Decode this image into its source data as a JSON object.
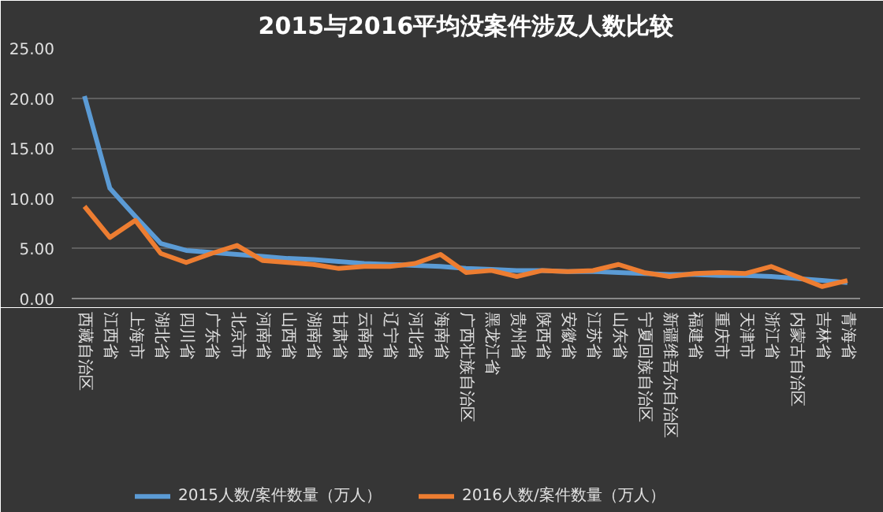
{
  "chart_data": {
    "type": "line",
    "title": "2015与2016平均没案件涉及人数比较",
    "categories": [
      "西藏自治区",
      "江西省",
      "上海市",
      "湖北省",
      "四川省",
      "广东省",
      "北京市",
      "河南省",
      "山西省",
      "湖南省",
      "甘肃省",
      "云南省",
      "辽宁省",
      "河北省",
      "海南省",
      "广西壮族自治区",
      "黑龙江省",
      "贵州省",
      "陕西省",
      "安徽省",
      "江苏省",
      "山东省",
      "宁夏回族自治区",
      "新疆维吾尔自治区",
      "福建省",
      "重庆市",
      "天津市",
      "浙江省",
      "内蒙古自治区",
      "吉林省",
      "青海省"
    ],
    "series": [
      {
        "name": "2015人数/案件数量（万人）",
        "color": "#5b9bd5",
        "values": [
          20.2,
          11,
          8.2,
          5.5,
          4.8,
          4.6,
          4.4,
          4.2,
          4.0,
          3.9,
          3.7,
          3.5,
          3.4,
          3.3,
          3.2,
          3.0,
          2.9,
          2.8,
          2.8,
          2.7,
          2.7,
          2.6,
          2.5,
          2.4,
          2.4,
          2.3,
          2.3,
          2.2,
          2.0,
          1.8,
          1.6
        ]
      },
      {
        "name": "2016人数/案件数量（万人）",
        "color": "#ed7d31",
        "values": [
          9.2,
          6.1,
          7.8,
          4.5,
          3.6,
          4.5,
          5.3,
          3.8,
          3.6,
          3.4,
          3.0,
          3.2,
          3.2,
          3.5,
          4.4,
          2.6,
          2.8,
          2.2,
          2.8,
          2.7,
          2.8,
          3.4,
          2.6,
          2.2,
          2.5,
          2.6,
          2.5,
          3.2,
          2.2,
          1.2,
          1.8
        ]
      }
    ],
    "ylim": [
      0,
      25
    ],
    "yticks": [
      {
        "value": 0,
        "label": "0.00"
      },
      {
        "value": 5,
        "label": "5.00"
      },
      {
        "value": 10,
        "label": "10.00"
      },
      {
        "value": 15,
        "label": "15.00"
      },
      {
        "value": 20,
        "label": "20.00"
      },
      {
        "value": 25,
        "label": "25.00"
      }
    ],
    "grid": "y",
    "legend": "bottom",
    "line_style": "solid"
  }
}
